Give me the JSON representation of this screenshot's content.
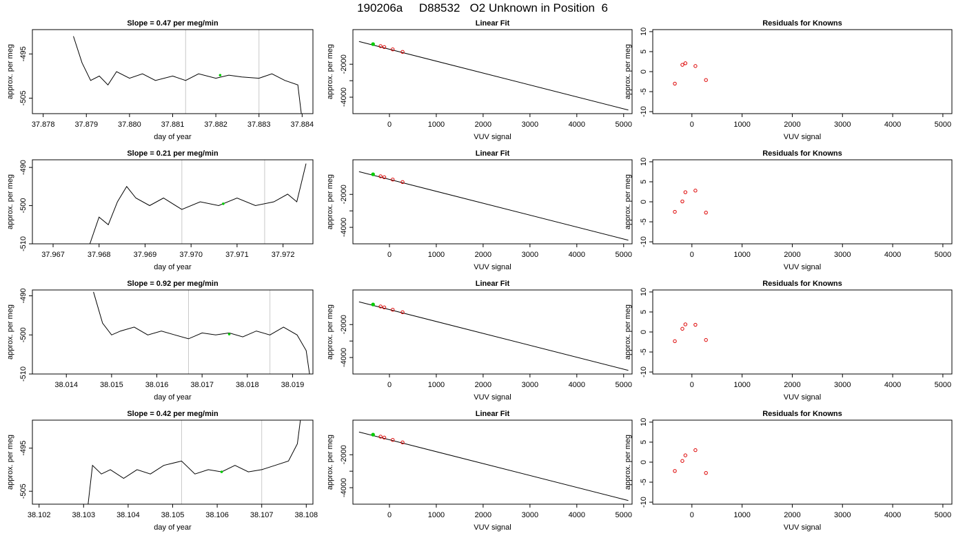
{
  "page_title": "190206a     D88532   O2 Unknown in Position  6",
  "colors": {
    "trace": "#000000",
    "marker_selected": "#00cc00",
    "known_points": "#dd0000",
    "window_lines": "#c8c8c8",
    "fit_line": "#000000"
  },
  "labels": {
    "trace_xlabel": "day of year",
    "ylabel": "approx. per meg",
    "fit_title": "Linear Fit",
    "resid_title": "Residuals for Knowns",
    "vuv_xlabel": "VUV signal",
    "slope_prefix": "Slope = ",
    "slope_suffix": " per meg/min"
  },
  "chart_data": [
    {
      "type": "line",
      "panel": "trace-1",
      "slope": "0.47",
      "xlabel": "day of year",
      "ylabel": "approx. per meg",
      "xticks": [
        "37.878",
        "37.879",
        "37.880",
        "37.881",
        "37.882",
        "37.883",
        "37.884"
      ],
      "yticks": [
        "-495",
        "-505"
      ],
      "window_lines_x": [
        37.8813,
        37.883
      ],
      "selected_point": {
        "x": 37.8821,
        "y": -499.8
      },
      "x": [
        37.8787,
        37.8789,
        37.8791,
        37.8793,
        37.8795,
        37.8797,
        37.88,
        37.8803,
        37.8806,
        37.881,
        37.8813,
        37.8816,
        37.882,
        37.8823,
        37.8826,
        37.883,
        37.8833,
        37.8836,
        37.8839,
        37.884,
        37.8842
      ],
      "y": [
        -491,
        -497,
        -501,
        -500,
        -502,
        -499,
        -500.5,
        -499.5,
        -501,
        -500,
        -501,
        -499.5,
        -500.5,
        -499.8,
        -500.2,
        -500.5,
        -499.5,
        -501,
        -502,
        -510,
        -519
      ]
    },
    {
      "type": "line",
      "panel": "trace-2",
      "slope": "0.21",
      "xlabel": "day of year",
      "ylabel": "approx. per meg",
      "xticks": [
        "37.967",
        "37.968",
        "37.969",
        "37.970",
        "37.971",
        "37.972"
      ],
      "yticks": [
        "-490",
        "-500",
        "-510"
      ],
      "window_lines_x": [
        37.9698,
        37.9716
      ],
      "selected_point": {
        "x": 37.9707,
        "y": -499.5
      },
      "x": [
        37.9678,
        37.968,
        37.9682,
        37.9684,
        37.9686,
        37.9688,
        37.9691,
        37.9694,
        37.9698,
        37.9702,
        37.9706,
        37.971,
        37.9714,
        37.9718,
        37.9721,
        37.9723,
        37.9725
      ],
      "y": [
        -510,
        -503,
        -505,
        -499,
        -495,
        -498,
        -500,
        -498,
        -501,
        -499,
        -500,
        -498,
        -500,
        -499,
        -497,
        -499,
        -489
      ]
    },
    {
      "type": "line",
      "panel": "trace-3",
      "slope": "0.92",
      "xlabel": "day of year",
      "ylabel": "approx. per meg",
      "xticks": [
        "38.014",
        "38.015",
        "38.016",
        "38.017",
        "38.018",
        "38.019"
      ],
      "yticks": [
        "-490",
        "-500",
        "-510"
      ],
      "window_lines_x": [
        38.0167,
        38.0185
      ],
      "selected_point": {
        "x": 38.0176,
        "y": -499.8
      },
      "x": [
        38.0146,
        38.0148,
        38.015,
        38.0152,
        38.0155,
        38.0158,
        38.0161,
        38.0164,
        38.0167,
        38.017,
        38.0173,
        38.0176,
        38.0179,
        38.0182,
        38.0185,
        38.0188,
        38.0191,
        38.0193,
        38.0194
      ],
      "y": [
        -489,
        -497,
        -500,
        -499,
        -498,
        -500,
        -499,
        -500,
        -501,
        -499.5,
        -500,
        -499.5,
        -500.5,
        -499,
        -500,
        -498,
        -500,
        -504,
        -512
      ]
    },
    {
      "type": "line",
      "panel": "trace-4",
      "slope": "0.42",
      "xlabel": "day of year",
      "ylabel": "approx. per meg",
      "xticks": [
        "38.102",
        "38.103",
        "38.104",
        "38.105",
        "38.106",
        "38.107",
        "38.108"
      ],
      "yticks": [
        "-495",
        "-505"
      ],
      "window_lines_x": [
        38.1052,
        38.107
      ],
      "selected_point": {
        "x": 38.1061,
        "y": -500.5
      },
      "x": [
        38.1031,
        38.1032,
        38.1034,
        38.1036,
        38.1039,
        38.1042,
        38.1045,
        38.1048,
        38.1052,
        38.1055,
        38.1058,
        38.1061,
        38.1064,
        38.1067,
        38.107,
        38.1073,
        38.1076,
        38.1078,
        38.1079
      ],
      "y": [
        -508,
        -499,
        -501,
        -500,
        -502,
        -500,
        -501,
        -499,
        -498,
        -501,
        -500,
        -500.5,
        -499,
        -500.5,
        -500,
        -499,
        -498,
        -494,
        -486
      ]
    },
    {
      "type": "scatter",
      "panel": "fit-1",
      "title": "Linear Fit",
      "xlabel": "VUV signal",
      "ylabel": "approx. per meg",
      "xlim": [
        -780,
        5180
      ],
      "ylim": [
        -5000,
        100
      ],
      "xticks": [
        0,
        1000,
        2000,
        3000,
        4000,
        5000
      ],
      "yticks": [
        -2000,
        -3000,
        -4000
      ],
      "ytick_labels": [
        "-2000",
        "",
        "-4000"
      ],
      "fit_line": [
        [
          -650,
          -620
        ],
        [
          5100,
          -4780
        ]
      ],
      "knowns": [
        [
          -190,
          -900
        ],
        [
          -110,
          -960
        ],
        [
          70,
          -1100
        ],
        [
          280,
          -1250
        ]
      ],
      "unknown": [
        -350,
        -780
      ]
    },
    {
      "type": "scatter",
      "panel": "fit-2",
      "title": "Linear Fit",
      "xlabel": "VUV signal",
      "ylabel": "approx. per meg",
      "xlim": [
        -780,
        5180
      ],
      "ylim": [
        -5000,
        100
      ],
      "xticks": [
        0,
        1000,
        2000,
        3000,
        4000,
        5000
      ],
      "yticks": [
        -2000,
        -3000,
        -4000
      ],
      "ytick_labels": [
        "-2000",
        "",
        "-4000"
      ],
      "fit_line": [
        [
          -650,
          -620
        ],
        [
          5100,
          -4780
        ]
      ],
      "knowns": [
        [
          -190,
          -900
        ],
        [
          -110,
          -960
        ],
        [
          70,
          -1100
        ],
        [
          280,
          -1250
        ]
      ],
      "unknown": [
        -350,
        -780
      ]
    },
    {
      "type": "scatter",
      "panel": "fit-3",
      "title": "Linear Fit",
      "xlabel": "VUV signal",
      "ylabel": "approx. per meg",
      "xlim": [
        -780,
        5180
      ],
      "ylim": [
        -5000,
        100
      ],
      "xticks": [
        0,
        1000,
        2000,
        3000,
        4000,
        5000
      ],
      "yticks": [
        -2000,
        -3000,
        -4000
      ],
      "ytick_labels": [
        "-2000",
        "",
        "-4000"
      ],
      "fit_line": [
        [
          -650,
          -620
        ],
        [
          5100,
          -4780
        ]
      ],
      "knowns": [
        [
          -190,
          -900
        ],
        [
          -110,
          -960
        ],
        [
          70,
          -1100
        ],
        [
          280,
          -1250
        ]
      ],
      "unknown": [
        -350,
        -780
      ]
    },
    {
      "type": "scatter",
      "panel": "fit-4",
      "title": "Linear Fit",
      "xlabel": "VUV signal",
      "ylabel": "approx. per meg",
      "xlim": [
        -780,
        5180
      ],
      "ylim": [
        -5000,
        100
      ],
      "xticks": [
        0,
        1000,
        2000,
        3000,
        4000,
        5000
      ],
      "yticks": [
        -2000,
        -3000,
        -4000
      ],
      "ytick_labels": [
        "-2000",
        "",
        "-4000"
      ],
      "fit_line": [
        [
          -650,
          -620
        ],
        [
          5100,
          -4780
        ]
      ],
      "knowns": [
        [
          -190,
          -900
        ],
        [
          -110,
          -960
        ],
        [
          70,
          -1100
        ],
        [
          280,
          -1250
        ]
      ],
      "unknown": [
        -350,
        -780
      ]
    },
    {
      "type": "scatter",
      "panel": "resid-1",
      "title": "Residuals for Knowns",
      "xlabel": "VUV signal",
      "ylabel": "approx. per meg",
      "xlim": [
        -780,
        5180
      ],
      "ylim": [
        -10.5,
        10.5
      ],
      "xticks": [
        0,
        1000,
        2000,
        3000,
        4000,
        5000
      ],
      "yticks": [
        10,
        5,
        0,
        -5,
        -10
      ],
      "points": [
        [
          -340,
          -3.0
        ],
        [
          -190,
          1.7
        ],
        [
          -130,
          2.1
        ],
        [
          70,
          1.4
        ],
        [
          280,
          -2.1
        ]
      ]
    },
    {
      "type": "scatter",
      "panel": "resid-2",
      "title": "Residuals for Knowns",
      "xlabel": "VUV signal",
      "ylabel": "approx. per meg",
      "xlim": [
        -780,
        5180
      ],
      "ylim": [
        -10.5,
        10.5
      ],
      "xticks": [
        0,
        1000,
        2000,
        3000,
        4000,
        5000
      ],
      "yticks": [
        10,
        5,
        0,
        -5,
        -10
      ],
      "points": [
        [
          -340,
          -2.5
        ],
        [
          -190,
          0.1
        ],
        [
          -130,
          2.4
        ],
        [
          70,
          2.8
        ],
        [
          280,
          -2.7
        ]
      ]
    },
    {
      "type": "scatter",
      "panel": "resid-3",
      "title": "Residuals for Knowns",
      "xlabel": "VUV signal",
      "ylabel": "approx. per meg",
      "xlim": [
        -780,
        5180
      ],
      "ylim": [
        -10.5,
        10.5
      ],
      "xticks": [
        0,
        1000,
        2000,
        3000,
        4000,
        5000
      ],
      "yticks": [
        10,
        5,
        0,
        -5,
        -10
      ],
      "points": [
        [
          -340,
          -2.3
        ],
        [
          -190,
          0.8
        ],
        [
          -130,
          1.9
        ],
        [
          70,
          1.8
        ],
        [
          280,
          -2.0
        ]
      ]
    },
    {
      "type": "scatter",
      "panel": "resid-4",
      "title": "Residuals for Knowns",
      "xlabel": "VUV signal",
      "ylabel": "approx. per meg",
      "xlim": [
        -780,
        5180
      ],
      "ylim": [
        -10.5,
        10.5
      ],
      "xticks": [
        0,
        1000,
        2000,
        3000,
        4000,
        5000
      ],
      "yticks": [
        10,
        5,
        0,
        -5,
        -10
      ],
      "points": [
        [
          -340,
          -2.2
        ],
        [
          -190,
          0.3
        ],
        [
          -130,
          1.7
        ],
        [
          70,
          3.0
        ],
        [
          280,
          -2.7
        ]
      ]
    }
  ]
}
